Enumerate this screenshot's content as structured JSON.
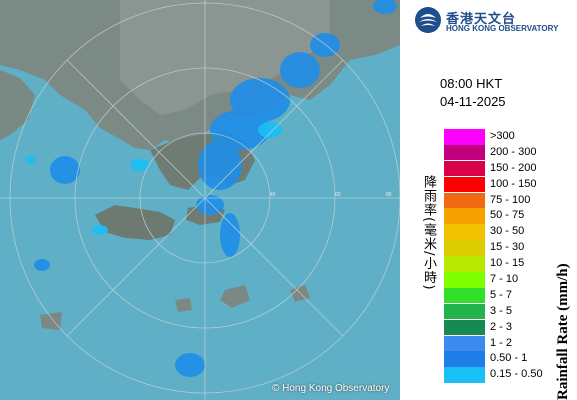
{
  "map": {
    "copyright": "© Hong Kong Observatory",
    "range_rings_km": [
      "40",
      "60",
      "80"
    ]
  },
  "header": {
    "logo_cn": "香港天文台",
    "logo_en": "HONG KONG OBSERVATORY",
    "time": "08:00 HKT",
    "date": "04-11-2025"
  },
  "legend": {
    "title_en": "Rainfall Rate (mm/h)",
    "title_cn": "降雨率(毫米/小時)",
    "items": [
      {
        "label": ">300",
        "color": "#ff00ff"
      },
      {
        "label": "200 - 300",
        "color": "#c0007f"
      },
      {
        "label": "150 - 200",
        "color": "#d8004a"
      },
      {
        "label": "100 - 150",
        "color": "#ff0000"
      },
      {
        "label": "75 - 100",
        "color": "#f06a12"
      },
      {
        "label": "50 - 75",
        "color": "#f5a200"
      },
      {
        "label": "30 - 50",
        "color": "#f2c100"
      },
      {
        "label": "15 - 30",
        "color": "#dccd00"
      },
      {
        "label": "10 - 15",
        "color": "#b9e800"
      },
      {
        "label": "7 - 10",
        "color": "#7fff00"
      },
      {
        "label": "5 - 7",
        "color": "#32e02c"
      },
      {
        "label": "3 - 5",
        "color": "#22b34d"
      },
      {
        "label": "2 - 3",
        "color": "#168a50"
      },
      {
        "label": "1 - 2",
        "color": "#3c8cf0"
      },
      {
        "label": "0.50 - 1",
        "color": "#1f7ee8"
      },
      {
        "label": "0.15 - 0.50",
        "color": "#18c0f5"
      }
    ]
  }
}
